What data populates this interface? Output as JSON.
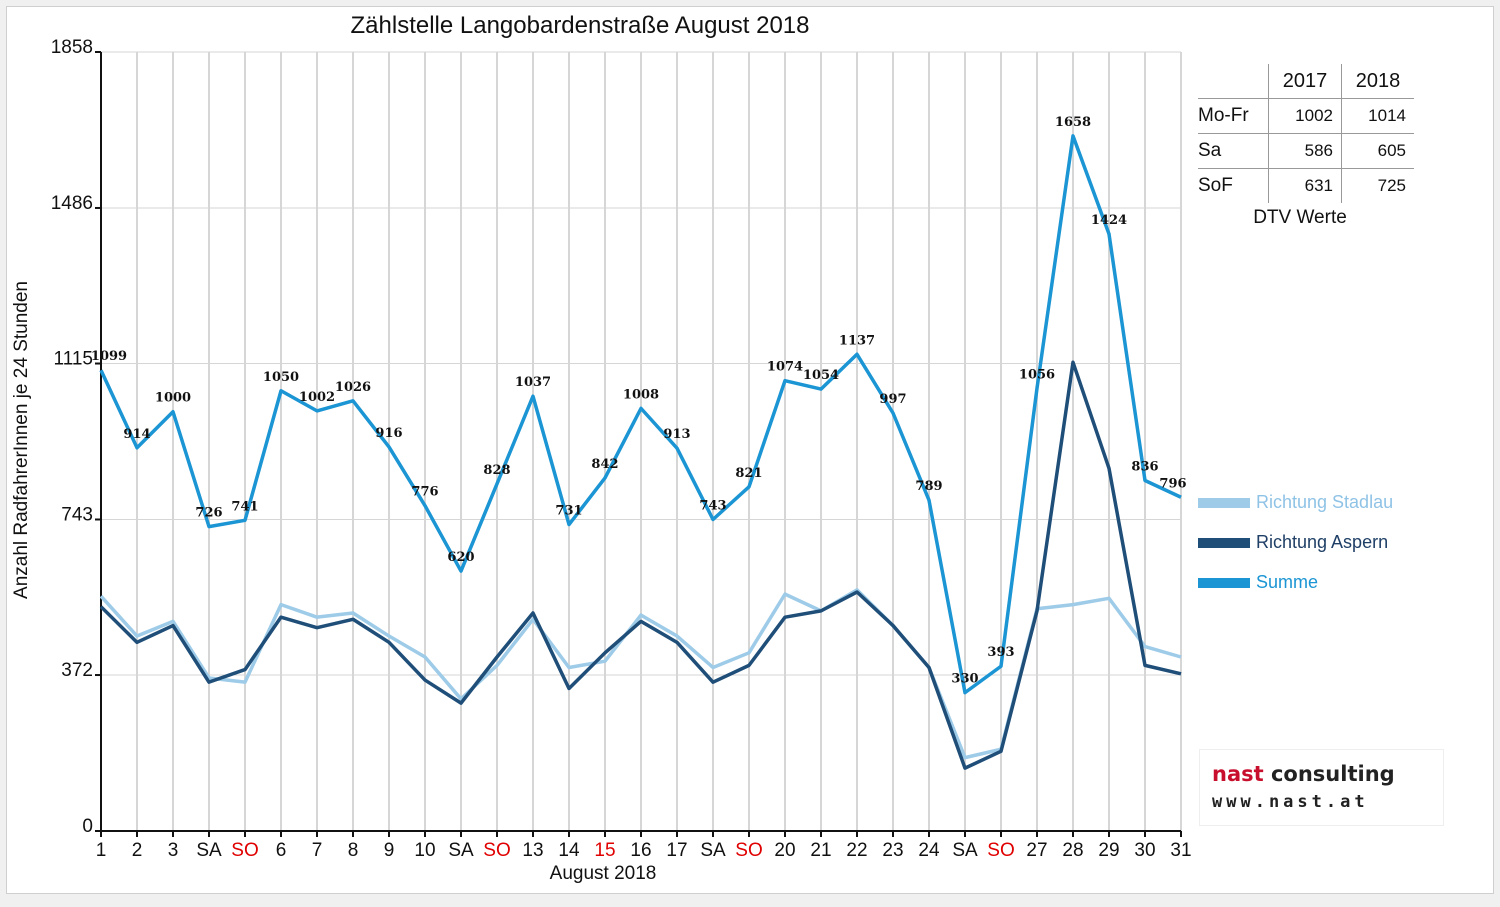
{
  "chart_data": {
    "type": "line",
    "title": "Zählstelle Langobardenstraße August 2018",
    "xlabel": "August 2018",
    "ylabel": "Anzahl RadfahrerInnen je 24 Stunden",
    "ylim": [
      0,
      1858
    ],
    "y_ticks": [
      0,
      372,
      743,
      1115,
      1486,
      1858
    ],
    "grid": "vertical",
    "x": [
      "1",
      "2",
      "3",
      "SA",
      "SO",
      "6",
      "7",
      "8",
      "9",
      "10",
      "SA",
      "SO",
      "13",
      "14",
      "15",
      "16",
      "17",
      "SA",
      "SO",
      "20",
      "21",
      "22",
      "23",
      "24",
      "SA",
      "SO",
      "27",
      "28",
      "29",
      "30",
      "31"
    ],
    "highlight_labels": [
      4,
      11,
      14,
      18,
      25
    ],
    "series": [
      {
        "name": "Richtung Stadlau",
        "values": [
          560,
          465,
          500,
          365,
          355,
          540,
          510,
          520,
          465,
          415,
          315,
          395,
          505,
          390,
          405,
          515,
          465,
          390,
          425,
          565,
          525,
          575,
          490,
          390,
          175,
          195,
          530,
          540,
          555,
          440,
          415
        ]
      },
      {
        "name": "Richtung Aspern",
        "values": [
          535,
          450,
          490,
          355,
          385,
          510,
          485,
          505,
          450,
          360,
          305,
          415,
          520,
          340,
          425,
          500,
          450,
          355,
          395,
          510,
          525,
          570,
          490,
          390,
          150,
          190,
          525,
          1118,
          865,
          395,
          375
        ]
      },
      {
        "name": "Summe",
        "values": [
          1099,
          914,
          1000,
          726,
          741,
          1050,
          1002,
          1026,
          916,
          776,
          620,
          828,
          1037,
          731,
          842,
          1008,
          913,
          743,
          821,
          1074,
          1054,
          1137,
          997,
          789,
          330,
          393,
          1056,
          1658,
          1424,
          836,
          796
        ]
      }
    ],
    "data_labels": [
      "1099",
      "914",
      "1000",
      "726",
      "741",
      "1050",
      "1002",
      "1026",
      "916",
      "776",
      "620",
      "828",
      "1037",
      "731",
      "842",
      "1008",
      "913",
      "743",
      "821",
      "1074",
      "1054",
      "1137",
      "997",
      "789",
      "330",
      "393",
      "1056",
      "1658",
      "1424",
      "836",
      "796"
    ],
    "colors": {
      "Richtung Stadlau": "#9dcbe8",
      "Richtung Aspern": "#1f4e79",
      "Summe": "#1b95d3"
    },
    "legend_position": "right"
  },
  "dtv_table": {
    "headers": [
      "",
      "2017",
      "2018"
    ],
    "rows": [
      {
        "label": "Mo-Fr",
        "v2017": "1002",
        "v2018": "1014"
      },
      {
        "label": "Sa",
        "v2017": "586",
        "v2018": "605"
      },
      {
        "label": "SoF",
        "v2017": "631",
        "v2018": "725"
      }
    ],
    "caption": "DTV Werte"
  },
  "legend": [
    {
      "label": "Richtung Stadlau",
      "color": "#9dcbe8",
      "text_color": "#8fc3e6"
    },
    {
      "label": "Richtung Aspern",
      "color": "#1f4e79",
      "text_color": "#1f3f66"
    },
    {
      "label": "Summe",
      "color": "#1b95d3",
      "text_color": "#1b95d3"
    }
  ],
  "logo": {
    "top_red": "nast",
    "top_dark": " consulting",
    "bottom": "www.nast.at"
  }
}
